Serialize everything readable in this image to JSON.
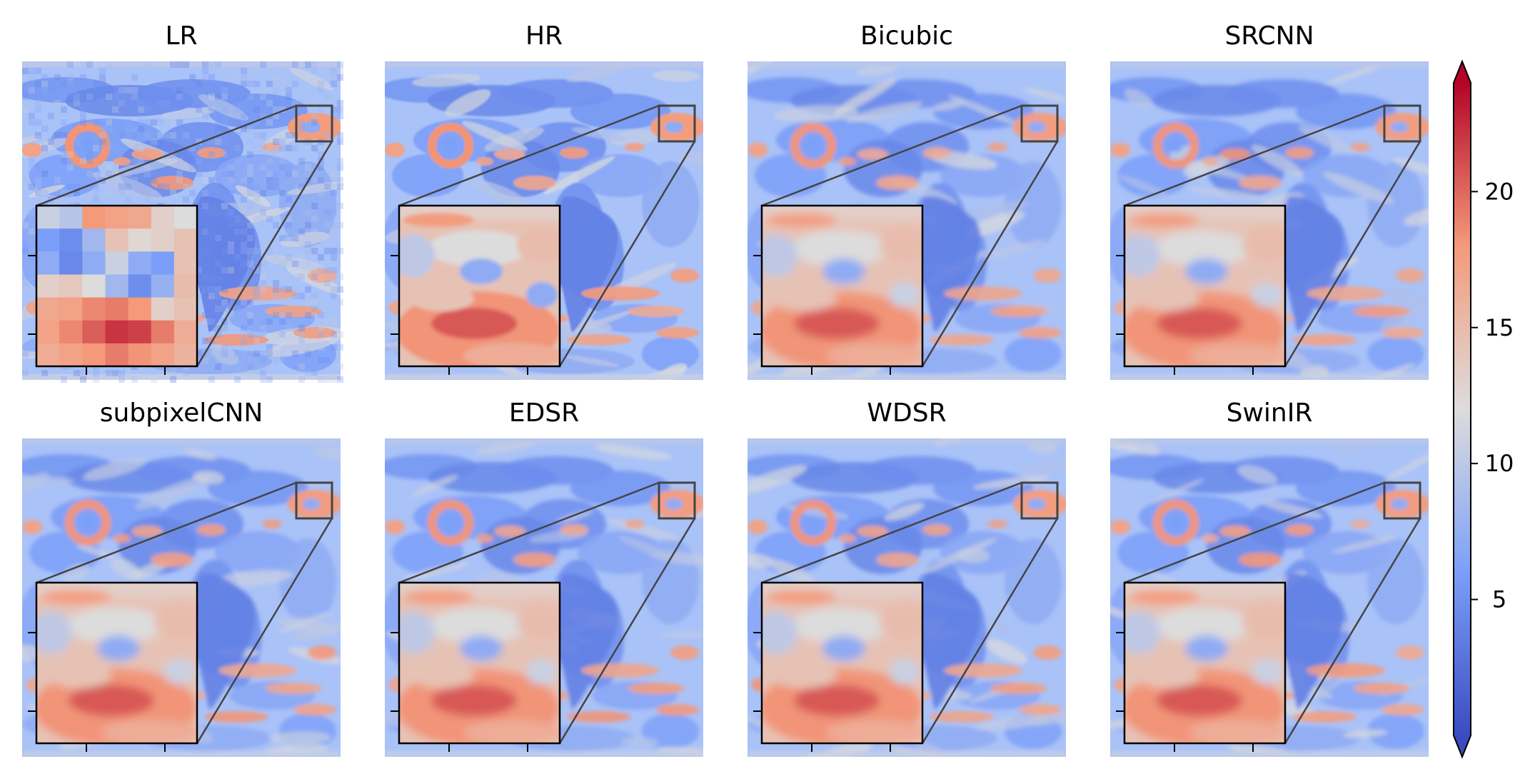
{
  "chart_data": {
    "type": "heatmap",
    "layout": "2x4 grid of map panels with zoom insets",
    "panels": [
      {
        "title": "LR",
        "style": "pixelated"
      },
      {
        "title": "HR",
        "style": "sharp"
      },
      {
        "title": "Bicubic",
        "style": "smooth"
      },
      {
        "title": "SRCNN",
        "style": "smooth"
      },
      {
        "title": "subpixelCNN",
        "style": "smooth"
      },
      {
        "title": "EDSR",
        "style": "smooth"
      },
      {
        "title": "WDSR",
        "style": "smooth"
      },
      {
        "title": "SwinIR",
        "style": "smooth"
      }
    ],
    "colorbar": {
      "colormap": "coolwarm",
      "ticks": [
        "5",
        "10",
        "15",
        "20"
      ],
      "tick_values": [
        5,
        10,
        15,
        20
      ],
      "range": [
        0,
        24
      ],
      "extend": "both"
    },
    "colors": {
      "low": "#3b4cc0",
      "mid": "#dddddd",
      "high": "#b40426"
    }
  }
}
